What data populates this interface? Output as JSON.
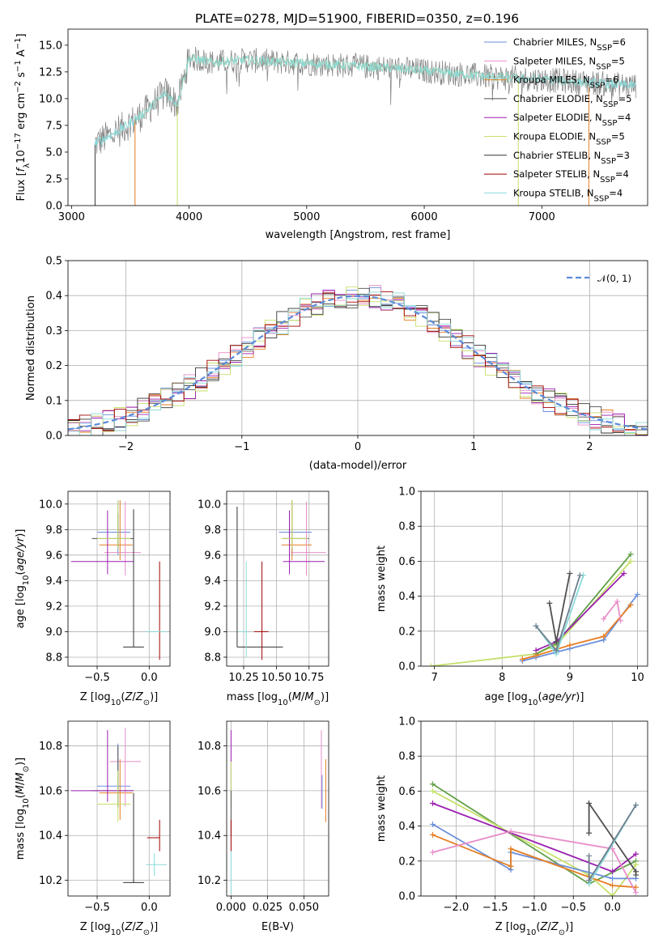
{
  "title": "PLATE=0278, MJD=51900, FIBERID=0350, z=0.196",
  "colors": {
    "chabrier_miles": "#6a8fdd",
    "salpeter_miles": "#e67e22",
    "kroupa_miles": "#e88ec8",
    "chabrier_elodie": "#4f4f4f",
    "salpeter_elodie": "#9b1fb0",
    "kroupa_elodie": "#c5e06a",
    "chabrier_stelib": "#333333",
    "salpeter_stelib": "#a00000",
    "kroupa_stelib": "#8ad9d9",
    "model_green": "#62a048",
    "spectrum_grey": "#808080",
    "normal_curve": "#5b8bd9"
  },
  "chart_data": [
    {
      "id": "spectrum",
      "type": "line",
      "title": "PLATE=0278, MJD=51900, FIBERID=0350, z=0.196",
      "xlabel": "wavelength [Angstrom, rest frame]",
      "ylabel": "Flux [f_λ 10^-17 erg cm^-2 s^-1 A^-1]",
      "xlim": [
        2970,
        7900
      ],
      "ylim": [
        0,
        16.5
      ],
      "xticks": [
        "3000",
        "4000",
        "5000",
        "6000",
        "7000"
      ],
      "yticks": [
        "0.0",
        "2.5",
        "5.0",
        "7.5",
        "10.0",
        "12.5",
        "15.0"
      ],
      "grid": false,
      "legend_position": "top-right",
      "legend": [
        {
          "label": "Chabrier MILES, N",
          "sub": "SSP",
          "suffix": "=6",
          "color": "#6a8fdd"
        },
        {
          "label": "Salpeter MILES, N",
          "sub": "SSP",
          "suffix": "=5",
          "color": "#e88ec8"
        },
        {
          "label": "Kroupa MILES, N",
          "sub": "SSP",
          "suffix": "=6",
          "color": "#e67e22"
        },
        {
          "label": "Chabrier ELODIE, N",
          "sub": "SSP",
          "suffix": "=5",
          "color": "#4f4f4f"
        },
        {
          "label": "Salpeter ELODIE, N",
          "sub": "SSP",
          "suffix": "=4",
          "color": "#9b1fb0"
        },
        {
          "label": "Kroupa ELODIE, N",
          "sub": "SSP",
          "suffix": "=5",
          "color": "#c5e06a"
        },
        {
          "label": "Chabrier STELIB, N",
          "sub": "SSP",
          "suffix": "=3",
          "color": "#333333"
        },
        {
          "label": "Salpeter STELIB, N",
          "sub": "SSP",
          "suffix": "=4",
          "color": "#a00000"
        },
        {
          "label": "Kroupa STELIB, N",
          "sub": "SSP",
          "suffix": "=4",
          "color": "#8ad9d9"
        }
      ],
      "continuum": [
        [
          3200,
          5.8
        ],
        [
          3400,
          7.0
        ],
        [
          3600,
          8.5
        ],
        [
          3800,
          10.5
        ],
        [
          3900,
          9.5
        ],
        [
          4000,
          13.8
        ],
        [
          4200,
          13.4
        ],
        [
          4500,
          13.6
        ],
        [
          4800,
          13.4
        ],
        [
          5000,
          13.3
        ],
        [
          5200,
          13.2
        ],
        [
          5500,
          13.0
        ],
        [
          5800,
          12.8
        ],
        [
          6000,
          12.6
        ],
        [
          6300,
          12.3
        ],
        [
          6600,
          12.0
        ],
        [
          7000,
          11.8
        ],
        [
          7400,
          11.5
        ],
        [
          7800,
          11.2
        ]
      ],
      "model_cutoffs": {
        "stelib_start": 3200,
        "miles_start": 3540,
        "elodie_start": 3900,
        "elodie_end": 6800,
        "miles_end": 7400
      }
    },
    {
      "id": "residuals",
      "type": "line",
      "xlabel": "(data-model)/error",
      "ylabel": "Normed distribution",
      "xlim": [
        -2.5,
        2.5
      ],
      "ylim": [
        0,
        0.5
      ],
      "xticks": [
        "−2",
        "−1",
        "0",
        "1",
        "2"
      ],
      "yticks": [
        "0.0",
        "0.1",
        "0.2",
        "0.3",
        "0.4",
        "0.5"
      ],
      "grid": true,
      "legend_position": "top-right",
      "legend": [
        {
          "label": "𝒩(0, 1)",
          "style": "dashed",
          "color": "#5b8bd9"
        }
      ],
      "bin_width": 0.1,
      "series_colors": [
        "#6a8fdd",
        "#e67e22",
        "#e88ec8",
        "#4f4f4f",
        "#9b1fb0",
        "#c5e06a",
        "#333333",
        "#a00000",
        "#8ad9d9"
      ]
    },
    {
      "id": "age_vs_Z",
      "type": "scatter",
      "xlabel": "Z [log10(Z/Z⊙)]",
      "ylabel": "age  [log10(age/yr)]",
      "xlim": [
        -0.78,
        0.2
      ],
      "ylim": [
        8.73,
        10.1
      ],
      "xticks": [
        "−0.5",
        "0.0"
      ],
      "yticks": [
        "8.8",
        "9.0",
        "9.2",
        "9.4",
        "9.6",
        "9.8",
        "10.0"
      ],
      "grid": true,
      "points": [
        {
          "color": "#6a8fdd",
          "x": -0.3,
          "xerr": [
            0.2,
            0.12
          ],
          "y": 9.78,
          "yerr": [
            0.18,
            0.25
          ]
        },
        {
          "color": "#e67e22",
          "x": -0.28,
          "xerr": [
            0.2,
            0.12
          ],
          "y": 9.68,
          "yerr": [
            0.12,
            0.35
          ]
        },
        {
          "color": "#e88ec8",
          "x": -0.23,
          "xerr": [
            0.2,
            0.15
          ],
          "y": 9.62,
          "yerr": [
            0.18,
            0.4
          ]
        },
        {
          "color": "#4f4f4f",
          "x": -0.3,
          "xerr": [
            0.25,
            0.15
          ],
          "y": 9.73,
          "yerr": [
            0.08,
            0.2
          ]
        },
        {
          "color": "#9b1fb0",
          "x": -0.4,
          "xerr": [
            0.35,
            0.25
          ],
          "y": 9.55,
          "yerr": [
            0.1,
            0.4
          ]
        },
        {
          "color": "#c5e06a",
          "x": -0.3,
          "xerr": [
            0.2,
            0.12
          ],
          "y": 9.73,
          "yerr": [
            0.08,
            0.3
          ]
        },
        {
          "color": "#333333",
          "x": -0.15,
          "xerr": [
            0.1,
            0.1
          ],
          "y": 8.88,
          "yerr": [
            0.0,
            1.08
          ]
        },
        {
          "color": "#a00000",
          "x": 0.1,
          "xerr": [
            0.0,
            0.0
          ],
          "y": 9.0,
          "yerr": [
            0.22,
            0.55
          ]
        },
        {
          "color": "#8ad9d9",
          "x": 0.05,
          "xerr": [
            0.08,
            0.12
          ],
          "y": 9.0,
          "yerr": [
            0.0,
            0.0
          ]
        }
      ]
    },
    {
      "id": "age_vs_mass",
      "type": "scatter",
      "xlabel": "mass [log10(M/M⊙)]",
      "ylabel": "",
      "xlim": [
        10.12,
        10.9
      ],
      "ylim": [
        8.73,
        10.1
      ],
      "xticks": [
        "10.25",
        "10.50",
        "10.75"
      ],
      "yticks": [
        "8.8",
        "9.0",
        "9.2",
        "9.4",
        "9.6",
        "9.8",
        "10.0"
      ],
      "grid": true,
      "points": [
        {
          "color": "#6a8fdd",
          "x": 10.62,
          "xerr": [
            0.1,
            0.15
          ],
          "y": 9.78,
          "yerr": [
            0.18,
            0.25
          ]
        },
        {
          "color": "#e67e22",
          "x": 10.62,
          "xerr": [
            0.08,
            0.15
          ],
          "y": 9.68,
          "yerr": [
            0.12,
            0.35
          ]
        },
        {
          "color": "#e88ec8",
          "x": 10.73,
          "xerr": [
            0.12,
            0.15
          ],
          "y": 9.62,
          "yerr": [
            0.18,
            0.4
          ]
        },
        {
          "color": "#4f4f4f",
          "x": 10.6,
          "xerr": [
            0.05,
            0.15
          ],
          "y": 9.73,
          "yerr": [
            0.08,
            0.2
          ]
        },
        {
          "color": "#9b1fb0",
          "x": 10.6,
          "xerr": [
            0.05,
            0.27
          ],
          "y": 9.55,
          "yerr": [
            0.1,
            0.4
          ]
        },
        {
          "color": "#c5e06a",
          "x": 10.62,
          "xerr": [
            0.08,
            0.12
          ],
          "y": 9.73,
          "yerr": [
            0.08,
            0.3
          ]
        },
        {
          "color": "#333333",
          "x": 10.2,
          "xerr": [
            0.0,
            0.35
          ],
          "y": 8.88,
          "yerr": [
            0.0,
            1.1
          ]
        },
        {
          "color": "#a00000",
          "x": 10.39,
          "xerr": [
            0.06,
            0.05
          ],
          "y": 9.0,
          "yerr": [
            0.22,
            0.55
          ]
        },
        {
          "color": "#8ad9d9",
          "x": 10.27,
          "xerr": [
            0.06,
            0.0
          ],
          "y": 9.0,
          "yerr": [
            0.2,
            0.55
          ]
        }
      ]
    },
    {
      "id": "mass_weight_vs_age",
      "type": "line",
      "xlabel": "age  [log10(age/yr)]",
      "ylabel": "mass weight",
      "xlim": [
        6.8,
        10.15
      ],
      "ylim": [
        0,
        1.0
      ],
      "xticks": [
        "7",
        "8",
        "9",
        "10"
      ],
      "yticks": [
        "0.0",
        "0.2",
        "0.4",
        "0.6",
        "0.8",
        "1.0"
      ],
      "grid": true,
      "series": [
        {
          "color": "#c5e06a",
          "x": [
            6.95,
            8.5,
            8.8,
            9.9
          ],
          "y": [
            0.0,
            0.07,
            0.12,
            0.6
          ]
        },
        {
          "color": "#62a048",
          "x": [
            8.5,
            8.8,
            9.9
          ],
          "y": [
            0.07,
            0.13,
            0.64
          ]
        },
        {
          "color": "#9b1fb0",
          "x": [
            8.5,
            8.8,
            9.8
          ],
          "y": [
            0.09,
            0.14,
            0.53
          ]
        },
        {
          "color": "#6a8fdd",
          "x": [
            8.3,
            8.5,
            9.0,
            9.5,
            10.0
          ],
          "y": [
            0.03,
            0.05,
            0.1,
            0.15,
            0.41
          ]
        },
        {
          "color": "#e67e22",
          "x": [
            8.3,
            8.5,
            9.0,
            9.5,
            9.9
          ],
          "y": [
            0.04,
            0.06,
            0.12,
            0.17,
            0.35
          ]
        },
        {
          "color": "#e88ec8",
          "x": [
            9.5,
            9.7,
            9.75
          ],
          "y": [
            0.27,
            0.37,
            0.26
          ]
        },
        {
          "color": "#4f4f4f",
          "x": [
            8.7,
            8.8,
            9.0
          ],
          "y": [
            0.36,
            0.14,
            0.53
          ]
        },
        {
          "color": "#8ad9d9",
          "x": [
            8.5,
            8.75,
            8.8,
            9.2
          ],
          "y": [
            0.23,
            0.1,
            0.07,
            0.52
          ]
        },
        {
          "color": "#6e7f8f",
          "x": [
            8.5,
            8.8,
            9.15
          ],
          "y": [
            0.23,
            0.09,
            0.52
          ]
        }
      ]
    },
    {
      "id": "mass_vs_Z",
      "type": "scatter",
      "xlabel": "Z [log10(Z/Z⊙)]",
      "ylabel": "mass [log10(M/M⊙)]",
      "xlim": [
        -0.78,
        0.2
      ],
      "ylim": [
        10.13,
        10.91
      ],
      "xticks": [
        "−0.5",
        "0.0"
      ],
      "yticks": [
        "10.2",
        "10.4",
        "10.6",
        "10.8"
      ],
      "grid": true,
      "points": [
        {
          "color": "#6a8fdd",
          "x": -0.3,
          "xerr": [
            0.2,
            0.12
          ],
          "y": 10.62,
          "yerr": [
            0.1,
            0.19
          ]
        },
        {
          "color": "#e67e22",
          "x": -0.28,
          "xerr": [
            0.2,
            0.12
          ],
          "y": 10.59,
          "yerr": [
            0.12,
            0.15
          ]
        },
        {
          "color": "#e88ec8",
          "x": -0.23,
          "xerr": [
            0.15,
            0.15
          ],
          "y": 10.73,
          "yerr": [
            0.2,
            0.15
          ]
        },
        {
          "color": "#4f4f4f",
          "x": -0.3,
          "xerr": [
            0.25,
            0.15
          ],
          "y": 10.6,
          "yerr": [
            0.07,
            0.2
          ]
        },
        {
          "color": "#9b1fb0",
          "x": -0.4,
          "xerr": [
            0.35,
            0.25
          ],
          "y": 10.6,
          "yerr": [
            0.05,
            0.27
          ]
        },
        {
          "color": "#c5e06a",
          "x": -0.3,
          "xerr": [
            0.2,
            0.12
          ],
          "y": 10.54,
          "yerr": [
            0.08,
            0.15
          ]
        },
        {
          "color": "#333333",
          "x": -0.15,
          "xerr": [
            0.1,
            0.1
          ],
          "y": 10.19,
          "yerr": [
            0.0,
            0.4
          ]
        },
        {
          "color": "#a00000",
          "x": 0.1,
          "xerr": [
            0.12,
            0.0
          ],
          "y": 10.39,
          "yerr": [
            0.06,
            0.08
          ]
        },
        {
          "color": "#8ad9d9",
          "x": 0.05,
          "xerr": [
            0.08,
            0.12
          ],
          "y": 10.27,
          "yerr": [
            0.05,
            0.05
          ]
        }
      ]
    },
    {
      "id": "mass_vs_ebv",
      "type": "scatter",
      "xlabel": "E(B-V)",
      "ylabel": "",
      "xlim": [
        -0.003,
        0.067
      ],
      "ylim": [
        10.13,
        10.91
      ],
      "xticks": [
        "0.000",
        "0.025",
        "0.050"
      ],
      "yticks": [
        "10.2",
        "10.4",
        "10.6",
        "10.8"
      ],
      "grid": true,
      "points": [
        {
          "color": "#9b1fb0",
          "x": 0.0,
          "ylo": 10.6,
          "yhi": 10.87
        },
        {
          "color": "#c5e06a",
          "x": 0.0,
          "ylo": 10.54,
          "yhi": 10.73
        },
        {
          "color": "#4f4f4f",
          "x": 0.0,
          "ylo": 10.4,
          "yhi": 10.6
        },
        {
          "color": "#a00000",
          "x": 0.0,
          "ylo": 10.33,
          "yhi": 10.47
        },
        {
          "color": "#8ad9d9",
          "x": 0.0,
          "ylo": 10.14,
          "yhi": 10.33
        },
        {
          "color": "#e88ec8",
          "x": 0.062,
          "ylo": 10.52,
          "yhi": 10.87
        },
        {
          "color": "#6a8fdd",
          "x": 0.0625,
          "ylo": 10.52,
          "yhi": 10.67
        },
        {
          "color": "#e67e22",
          "x": 0.065,
          "ylo": 10.46,
          "yhi": 10.74
        }
      ]
    },
    {
      "id": "mass_weight_vs_Z",
      "type": "line",
      "xlabel": "Z [log10(Z/Z⊙)]",
      "ylabel": "mass weight",
      "xlim": [
        -2.45,
        0.45
      ],
      "ylim": [
        0,
        1.0
      ],
      "xticks": [
        "−2.0",
        "−1.5",
        "−1.0",
        "−0.5",
        "0.0"
      ],
      "yticks": [
        "0.0",
        "0.2",
        "0.4",
        "0.6",
        "0.8",
        "1.0"
      ],
      "grid": true,
      "series": [
        {
          "color": "#62a048",
          "x": [
            -2.3,
            -0.3,
            0.3
          ],
          "y": [
            0.64,
            0.07,
            0.2
          ]
        },
        {
          "color": "#c5e06a",
          "x": [
            -2.3,
            -0.3,
            0.0,
            0.3
          ],
          "y": [
            0.6,
            0.12,
            0.0,
            0.18
          ]
        },
        {
          "color": "#9b1fb0",
          "x": [
            -2.3,
            0.0,
            0.3
          ],
          "y": [
            0.53,
            0.14,
            0.24
          ]
        },
        {
          "color": "#6a8fdd",
          "x": [
            -2.3,
            -1.3,
            -1.3,
            0.0,
            0.3
          ],
          "y": [
            0.41,
            0.15,
            0.25,
            0.1,
            0.1
          ]
        },
        {
          "color": "#e67e22",
          "x": [
            -2.3,
            -1.3,
            -1.3,
            0.0,
            0.3
          ],
          "y": [
            0.35,
            0.17,
            0.27,
            0.06,
            0.05
          ]
        },
        {
          "color": "#e88ec8",
          "x": [
            -2.3,
            -1.3,
            0.0,
            0.3
          ],
          "y": [
            0.25,
            0.37,
            0.27,
            0.02
          ]
        },
        {
          "color": "#4f4f4f",
          "x": [
            -0.3,
            -0.3,
            0.3,
            0.3
          ],
          "y": [
            0.36,
            0.53,
            0.14,
            0.12
          ]
        },
        {
          "color": "#8ad9d9",
          "x": [
            -0.3,
            0.3
          ],
          "y": [
            0.07,
            0.52
          ]
        },
        {
          "color": "#6e7f8f",
          "x": [
            -0.3,
            -0.3,
            0.3
          ],
          "y": [
            0.23,
            0.09,
            0.52
          ]
        }
      ]
    }
  ]
}
